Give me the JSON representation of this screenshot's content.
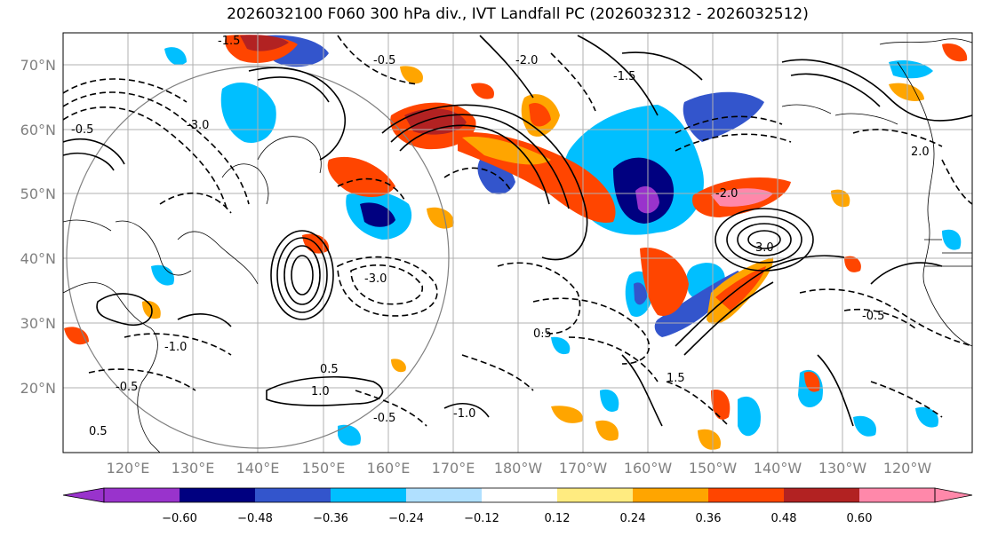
{
  "title": "2026032100 F060 300 hPa div., IVT Landfall PC (2026032312 - 2026032512)",
  "lat_ticks": [
    "70°N",
    "60°N",
    "50°N",
    "40°N",
    "30°N",
    "20°N"
  ],
  "lon_ticks": [
    "120°E",
    "130°E",
    "140°E",
    "150°E",
    "160°E",
    "170°E",
    "180°W",
    "170°W",
    "160°W",
    "150°W",
    "140°W",
    "130°W",
    "120°W"
  ],
  "colorbar": {
    "labels": [
      "−0.60",
      "−0.48",
      "−0.36",
      "−0.24",
      "−0.12",
      "0.12",
      "0.24",
      "0.36",
      "0.48",
      "0.60"
    ],
    "colors": [
      "#9933cc",
      "#000080",
      "#3355cc",
      "#00bfff",
      "#b0e0ff",
      "#ffffff",
      "#ffeb80",
      "#ffa500",
      "#ff4500",
      "#b22222",
      "#ff88aa"
    ]
  },
  "contour_labels": [
    "-0.5",
    "-1.0",
    "-1.5",
    "-2.0",
    "-3.0",
    "0.5",
    "1.0",
    "1.5",
    "2.0",
    "3.0"
  ]
}
